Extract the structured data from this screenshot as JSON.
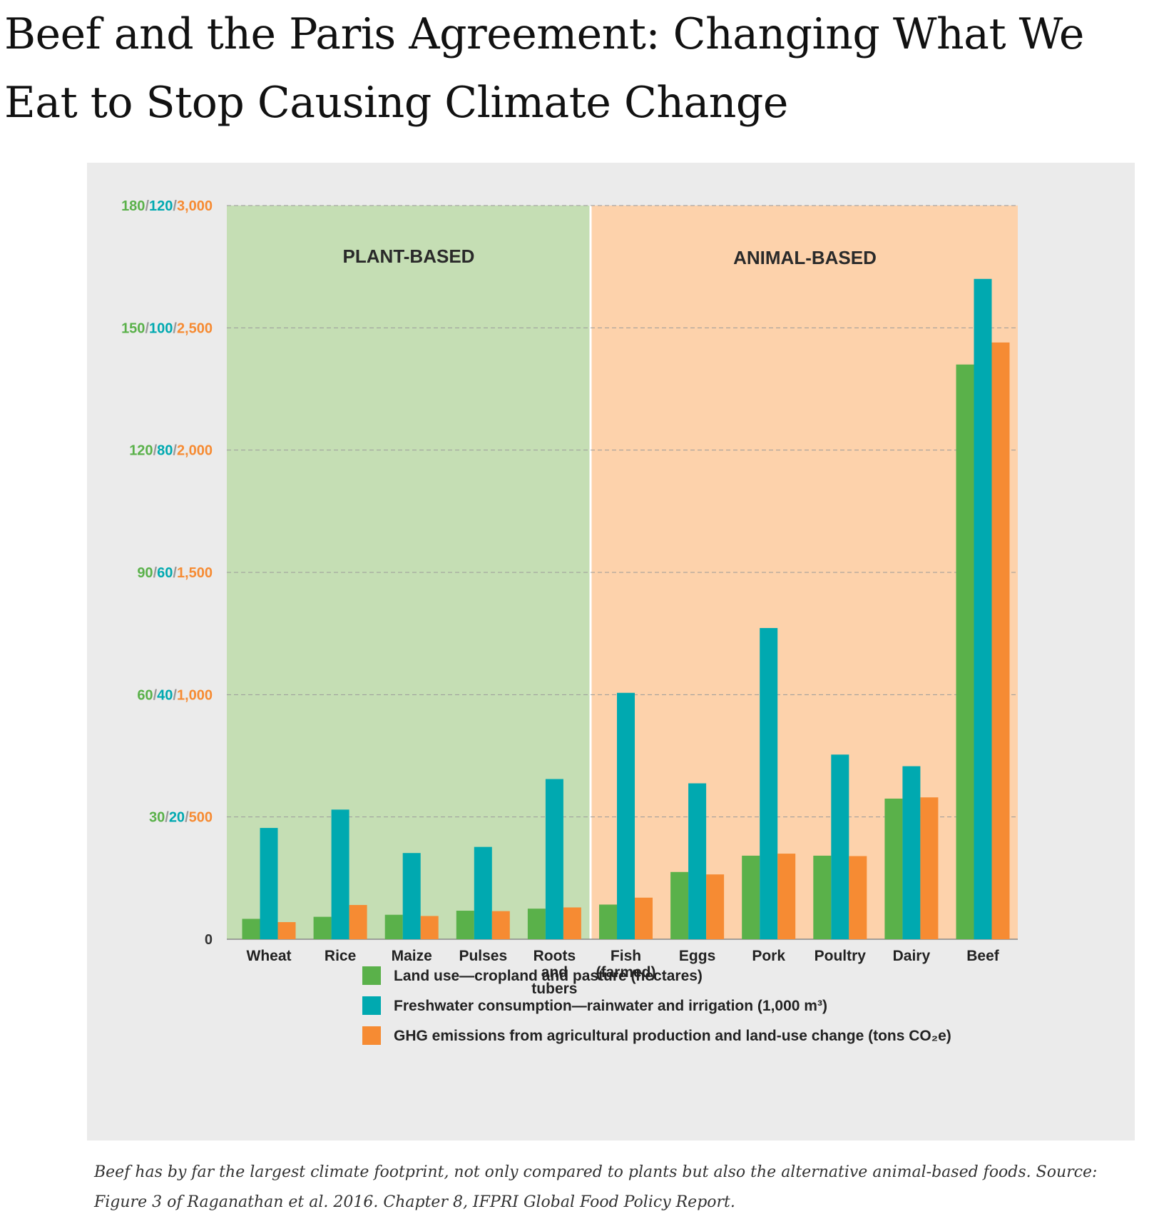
{
  "article": {
    "title": "Beef and the Paris Agreement: Changing What We Eat to Stop Causing Climate Change",
    "caption": "Beef has by far the largest climate footprint, not only compared to plants but also the alternative animal-based foods. Source: Figure 3 of Raganathan et al. 2016. Chapter 8, IFPRI Global Food Policy Report."
  },
  "colors": {
    "land": "#5ab14a",
    "water": "#00a9b0",
    "ghg": "#f68b33",
    "plant_bg": "#c5deb4",
    "animal_bg": "#fdd2ab",
    "figure_bg": "#ebebeb"
  },
  "chart_data": {
    "type": "bar",
    "regions": [
      {
        "label": "PLANT-BASED",
        "categories": [
          "Wheat",
          "Rice",
          "Maize",
          "Pulses",
          "Roots and tubers"
        ]
      },
      {
        "label": "ANIMAL-BASED",
        "categories": [
          "Fish (farmed)",
          "Eggs",
          "Pork",
          "Poultry",
          "Dairy",
          "Beef"
        ]
      }
    ],
    "categories": [
      "Wheat",
      "Rice",
      "Maize",
      "Pulses",
      "Roots and tubers",
      "Fish (farmed)",
      "Eggs",
      "Pork",
      "Poultry",
      "Dairy",
      "Beef"
    ],
    "category_lines": [
      [
        "Wheat"
      ],
      [
        "Rice"
      ],
      [
        "Maize"
      ],
      [
        "Pulses"
      ],
      [
        "Roots",
        "and",
        "tubers"
      ],
      [
        "Fish",
        "(farmed)"
      ],
      [
        "Eggs"
      ],
      [
        "Pork"
      ],
      [
        "Poultry"
      ],
      [
        "Dairy"
      ],
      [
        "Beef"
      ]
    ],
    "series": [
      {
        "name": "Land use—cropland and pasture (hectares)",
        "color": "#5ab14a",
        "ymax": 180,
        "values": [
          5,
          5.5,
          6,
          7,
          7.5,
          8.5,
          16.5,
          20.5,
          20.5,
          34.5,
          141
        ]
      },
      {
        "name": "Freshwater consumption—rainwater and irrigation (1,000 m³)",
        "color": "#00a9b0",
        "ymax": 120,
        "values": [
          18.2,
          21.2,
          14.1,
          15.1,
          26.2,
          40.3,
          25.5,
          50.9,
          30.2,
          28.3,
          108
        ]
      },
      {
        "name": "GHG emissions from agricultural production and land-use change (tons CO₂e)",
        "color": "#f68b33",
        "ymax": 3000,
        "values": [
          70,
          140,
          95,
          115,
          130,
          170,
          265,
          350,
          340,
          580,
          2440
        ]
      }
    ],
    "y_ticks": [
      {
        "land": "0",
        "water": "",
        "ghg": ""
      },
      {
        "land": "30",
        "water": "20",
        "ghg": "500"
      },
      {
        "land": "60",
        "water": "40",
        "ghg": "1,000"
      },
      {
        "land": "90",
        "water": "60",
        "ghg": "1,500"
      },
      {
        "land": "120",
        "water": "80",
        "ghg": "2,000"
      },
      {
        "land": "150",
        "water": "100",
        "ghg": "2,500"
      },
      {
        "land": "180",
        "water": "120",
        "ghg": "3,000"
      }
    ],
    "ylim": [
      0,
      1
    ],
    "grid": true,
    "legend": "bottom"
  }
}
